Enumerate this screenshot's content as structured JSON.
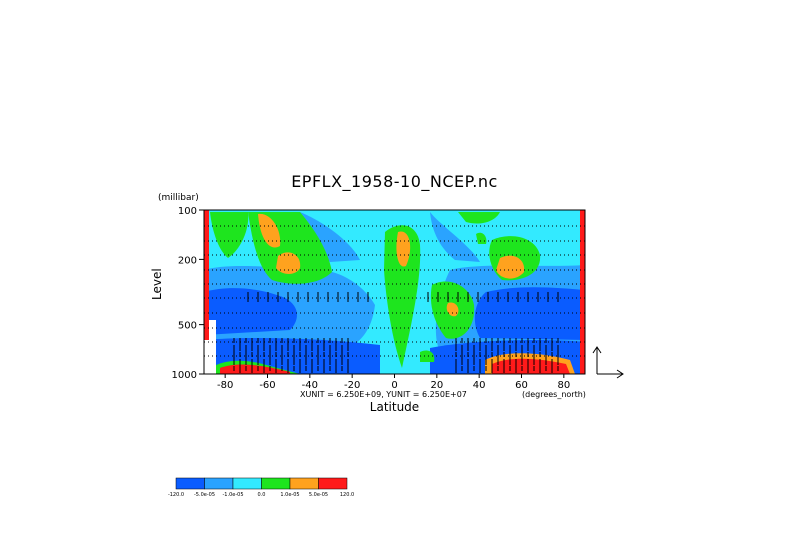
{
  "chart_data": {
    "type": "heatmap",
    "title": "EPFLX_1958-10_NCEP.nc",
    "ylabel": "Level",
    "yunits": "(millibar)",
    "xlabel": "Latitude",
    "xunits": "(degrees_north)",
    "vector_scale": "XUNIT = 6.250E+09, YUNIT = 6.250E+07",
    "xlim": [
      -90,
      90
    ],
    "ylim": [
      1000,
      100
    ],
    "yscale": "log",
    "x_ticks": [
      "-80",
      "-60",
      "-40",
      "-20",
      "0",
      "20",
      "40",
      "60",
      "80"
    ],
    "y_ticks": [
      "100",
      "200",
      "500",
      "1000"
    ],
    "grid": "dotted horizontal lines",
    "colorbar": {
      "levels": [
        "-120.0",
        "-5.0e-05",
        "-1.0e-05",
        "0.0",
        "1.0e-05",
        "5.0e-05",
        "120.0"
      ],
      "colors": [
        "#0a5cff",
        "#2aa3ff",
        "#33eaff",
        "#1ee51e",
        "#ffa21e",
        "#ff1a1a"
      ]
    }
  }
}
